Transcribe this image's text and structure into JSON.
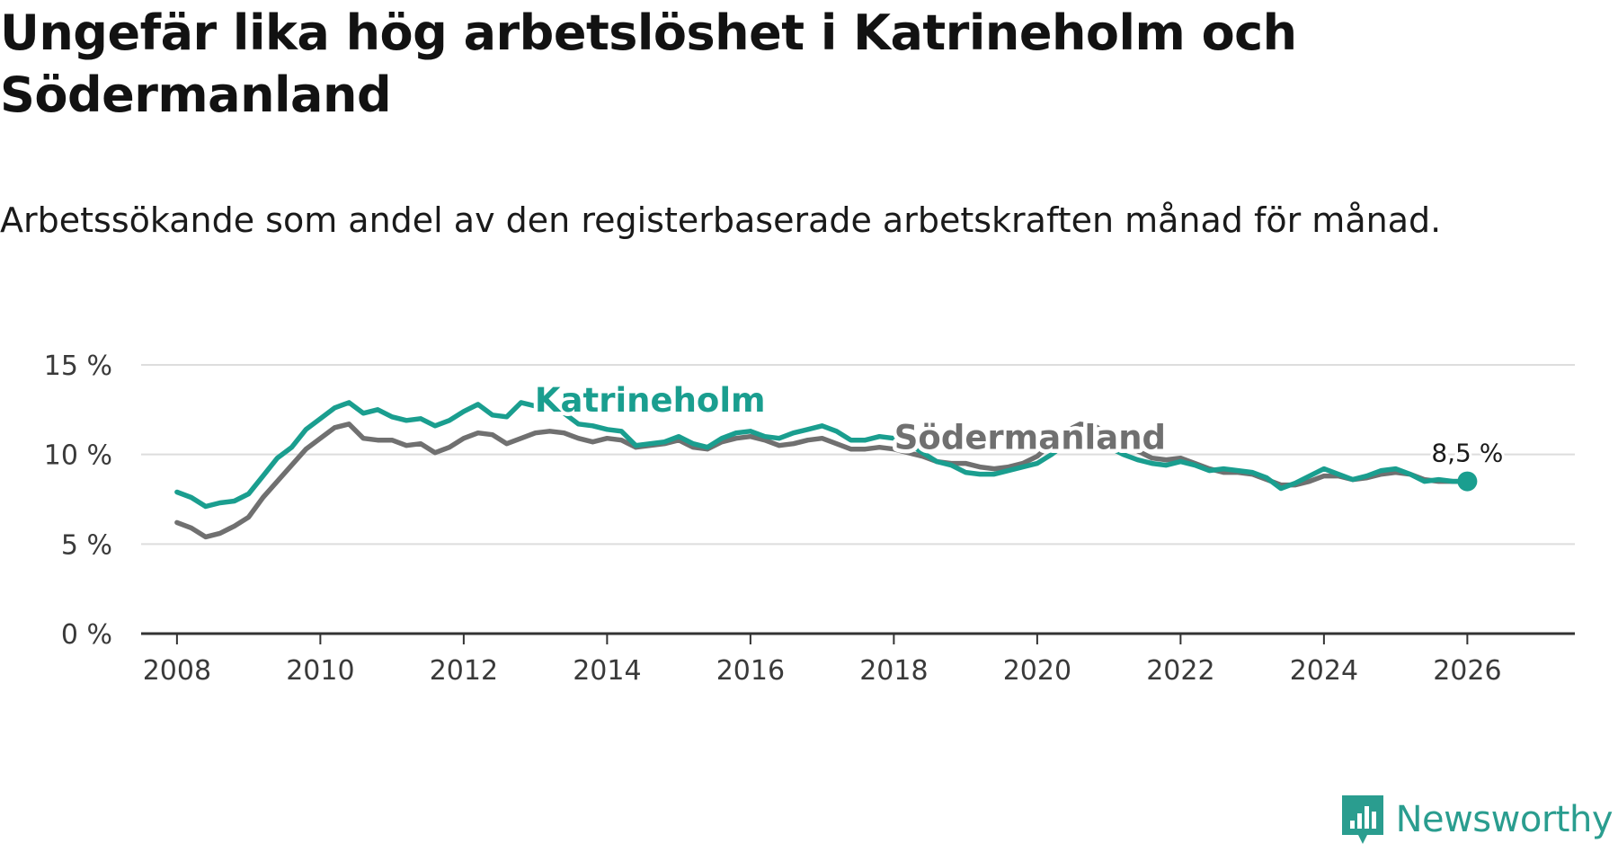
{
  "header": {
    "title": "Ungefär lika hög arbetslöshet i Katrineholm och Södermanland",
    "subtitle": "Arbetssökande som andel av den registerbaserade arbetskraften månad för månad."
  },
  "brand": {
    "name": "Newsworthy",
    "icon": "newsworthy-logo-icon",
    "color": "#2a9d8f"
  },
  "colors": {
    "katrineholm": "#1a9e8f",
    "sodermanland": "#707070",
    "grid": "#dddddd",
    "axis": "#333333"
  },
  "chart_data": {
    "type": "line",
    "title": "Ungefär lika hög arbetslöshet i Katrineholm och Södermanland",
    "xlabel": "",
    "ylabel": "",
    "xlim": [
      2007.5,
      2027.5
    ],
    "ylim": [
      0,
      15
    ],
    "x_ticks": [
      {
        "value": 2008,
        "label": "2008"
      },
      {
        "value": 2010,
        "label": "2010"
      },
      {
        "value": 2012,
        "label": "2012"
      },
      {
        "value": 2014,
        "label": "2014"
      },
      {
        "value": 2016,
        "label": "2016"
      },
      {
        "value": 2018,
        "label": "2018"
      },
      {
        "value": 2020,
        "label": "2020"
      },
      {
        "value": 2022,
        "label": "2022"
      },
      {
        "value": 2024,
        "label": "2024"
      },
      {
        "value": 2026,
        "label": "2026"
      }
    ],
    "y_ticks": [
      {
        "value": 0,
        "label": "0 %"
      },
      {
        "value": 5,
        "label": "5 %"
      },
      {
        "value": 10,
        "label": "10 %"
      },
      {
        "value": 15,
        "label": "15 %"
      }
    ],
    "grid": true,
    "series": [
      {
        "name": "Södermanland",
        "label": "Södermanland",
        "label_anchor": [
          2019.9,
          10.3
        ],
        "points": [
          [
            2008.0,
            6.2
          ],
          [
            2008.2,
            5.9
          ],
          [
            2008.4,
            5.4
          ],
          [
            2008.6,
            5.6
          ],
          [
            2008.8,
            6.0
          ],
          [
            2009.0,
            6.5
          ],
          [
            2009.2,
            7.6
          ],
          [
            2009.4,
            8.5
          ],
          [
            2009.6,
            9.4
          ],
          [
            2009.8,
            10.3
          ],
          [
            2010.0,
            10.9
          ],
          [
            2010.2,
            11.5
          ],
          [
            2010.4,
            11.7
          ],
          [
            2010.6,
            10.9
          ],
          [
            2010.8,
            10.8
          ],
          [
            2011.0,
            10.8
          ],
          [
            2011.2,
            10.5
          ],
          [
            2011.4,
            10.6
          ],
          [
            2011.6,
            10.1
          ],
          [
            2011.8,
            10.4
          ],
          [
            2012.0,
            10.9
          ],
          [
            2012.2,
            11.2
          ],
          [
            2012.4,
            11.1
          ],
          [
            2012.6,
            10.6
          ],
          [
            2012.8,
            10.9
          ],
          [
            2013.0,
            11.2
          ],
          [
            2013.2,
            11.3
          ],
          [
            2013.4,
            11.2
          ],
          [
            2013.6,
            10.9
          ],
          [
            2013.8,
            10.7
          ],
          [
            2014.0,
            10.9
          ],
          [
            2014.2,
            10.8
          ],
          [
            2014.4,
            10.4
          ],
          [
            2014.6,
            10.5
          ],
          [
            2014.8,
            10.6
          ],
          [
            2015.0,
            10.8
          ],
          [
            2015.2,
            10.4
          ],
          [
            2015.4,
            10.3
          ],
          [
            2015.6,
            10.7
          ],
          [
            2015.8,
            10.9
          ],
          [
            2016.0,
            11.0
          ],
          [
            2016.2,
            10.8
          ],
          [
            2016.4,
            10.5
          ],
          [
            2016.6,
            10.6
          ],
          [
            2016.8,
            10.8
          ],
          [
            2017.0,
            10.9
          ],
          [
            2017.2,
            10.6
          ],
          [
            2017.4,
            10.3
          ],
          [
            2017.6,
            10.3
          ],
          [
            2017.8,
            10.4
          ],
          [
            2018.0,
            10.3
          ],
          [
            2018.2,
            10.1
          ],
          [
            2018.4,
            9.9
          ],
          [
            2018.6,
            9.6
          ],
          [
            2018.8,
            9.5
          ],
          [
            2019.0,
            9.5
          ],
          [
            2019.2,
            9.3
          ],
          [
            2019.4,
            9.2
          ],
          [
            2019.6,
            9.3
          ],
          [
            2019.8,
            9.5
          ],
          [
            2020.0,
            9.9
          ],
          [
            2020.2,
            10.6
          ],
          [
            2020.4,
            11.3
          ],
          [
            2020.6,
            11.7
          ],
          [
            2020.8,
            11.6
          ],
          [
            2021.0,
            11.1
          ],
          [
            2021.2,
            10.6
          ],
          [
            2021.4,
            10.2
          ],
          [
            2021.6,
            9.8
          ],
          [
            2021.8,
            9.7
          ],
          [
            2022.0,
            9.8
          ],
          [
            2022.2,
            9.5
          ],
          [
            2022.4,
            9.2
          ],
          [
            2022.6,
            9.0
          ],
          [
            2022.8,
            9.0
          ],
          [
            2023.0,
            8.9
          ],
          [
            2023.2,
            8.6
          ],
          [
            2023.4,
            8.3
          ],
          [
            2023.6,
            8.3
          ],
          [
            2023.8,
            8.5
          ],
          [
            2024.0,
            8.8
          ],
          [
            2024.2,
            8.8
          ],
          [
            2024.4,
            8.6
          ],
          [
            2024.6,
            8.7
          ],
          [
            2024.8,
            8.9
          ],
          [
            2025.0,
            9.0
          ],
          [
            2025.2,
            8.9
          ],
          [
            2025.4,
            8.6
          ],
          [
            2025.6,
            8.5
          ],
          [
            2025.8,
            8.5
          ],
          [
            2026.0,
            8.5
          ]
        ]
      },
      {
        "name": "Katrineholm",
        "label": "Katrineholm",
        "label_anchor": [
          2014.6,
          12.4
        ],
        "end_value_label": "8,5 %",
        "points": [
          [
            2008.0,
            7.9
          ],
          [
            2008.2,
            7.6
          ],
          [
            2008.4,
            7.1
          ],
          [
            2008.6,
            7.3
          ],
          [
            2008.8,
            7.4
          ],
          [
            2009.0,
            7.8
          ],
          [
            2009.2,
            8.8
          ],
          [
            2009.4,
            9.8
          ],
          [
            2009.6,
            10.4
          ],
          [
            2009.8,
            11.4
          ],
          [
            2010.0,
            12.0
          ],
          [
            2010.2,
            12.6
          ],
          [
            2010.4,
            12.9
          ],
          [
            2010.6,
            12.3
          ],
          [
            2010.8,
            12.5
          ],
          [
            2011.0,
            12.1
          ],
          [
            2011.2,
            11.9
          ],
          [
            2011.4,
            12.0
          ],
          [
            2011.6,
            11.6
          ],
          [
            2011.8,
            11.9
          ],
          [
            2012.0,
            12.4
          ],
          [
            2012.2,
            12.8
          ],
          [
            2012.4,
            12.2
          ],
          [
            2012.6,
            12.1
          ],
          [
            2012.8,
            12.9
          ],
          [
            2013.0,
            12.7
          ],
          [
            2013.2,
            12.6
          ],
          [
            2013.4,
            12.3
          ],
          [
            2013.6,
            11.7
          ],
          [
            2013.8,
            11.6
          ],
          [
            2014.0,
            11.4
          ],
          [
            2014.2,
            11.3
          ],
          [
            2014.4,
            10.5
          ],
          [
            2014.6,
            10.6
          ],
          [
            2014.8,
            10.7
          ],
          [
            2015.0,
            11.0
          ],
          [
            2015.2,
            10.6
          ],
          [
            2015.4,
            10.4
          ],
          [
            2015.6,
            10.9
          ],
          [
            2015.8,
            11.2
          ],
          [
            2016.0,
            11.3
          ],
          [
            2016.2,
            11.0
          ],
          [
            2016.4,
            10.9
          ],
          [
            2016.6,
            11.2
          ],
          [
            2016.8,
            11.4
          ],
          [
            2017.0,
            11.6
          ],
          [
            2017.2,
            11.3
          ],
          [
            2017.4,
            10.8
          ],
          [
            2017.6,
            10.8
          ],
          [
            2017.8,
            11.0
          ],
          [
            2018.0,
            10.9
          ],
          [
            2018.2,
            10.6
          ],
          [
            2018.4,
            10.1
          ],
          [
            2018.6,
            9.6
          ],
          [
            2018.8,
            9.4
          ],
          [
            2019.0,
            9.0
          ],
          [
            2019.2,
            8.9
          ],
          [
            2019.4,
            8.9
          ],
          [
            2019.6,
            9.1
          ],
          [
            2019.8,
            9.3
          ],
          [
            2020.0,
            9.5
          ],
          [
            2020.2,
            10.0
          ],
          [
            2020.4,
            10.6
          ],
          [
            2020.6,
            11.0
          ],
          [
            2020.8,
            10.9
          ],
          [
            2021.0,
            10.4
          ],
          [
            2021.2,
            10.0
          ],
          [
            2021.4,
            9.7
          ],
          [
            2021.6,
            9.5
          ],
          [
            2021.8,
            9.4
          ],
          [
            2022.0,
            9.6
          ],
          [
            2022.2,
            9.4
          ],
          [
            2022.4,
            9.1
          ],
          [
            2022.6,
            9.2
          ],
          [
            2022.8,
            9.1
          ],
          [
            2023.0,
            9.0
          ],
          [
            2023.2,
            8.7
          ],
          [
            2023.4,
            8.1
          ],
          [
            2023.6,
            8.4
          ],
          [
            2023.8,
            8.8
          ],
          [
            2024.0,
            9.2
          ],
          [
            2024.2,
            8.9
          ],
          [
            2024.4,
            8.6
          ],
          [
            2024.6,
            8.8
          ],
          [
            2024.8,
            9.1
          ],
          [
            2025.0,
            9.2
          ],
          [
            2025.2,
            8.9
          ],
          [
            2025.4,
            8.5
          ],
          [
            2025.6,
            8.6
          ],
          [
            2025.8,
            8.5
          ],
          [
            2026.0,
            8.5
          ]
        ]
      }
    ]
  }
}
